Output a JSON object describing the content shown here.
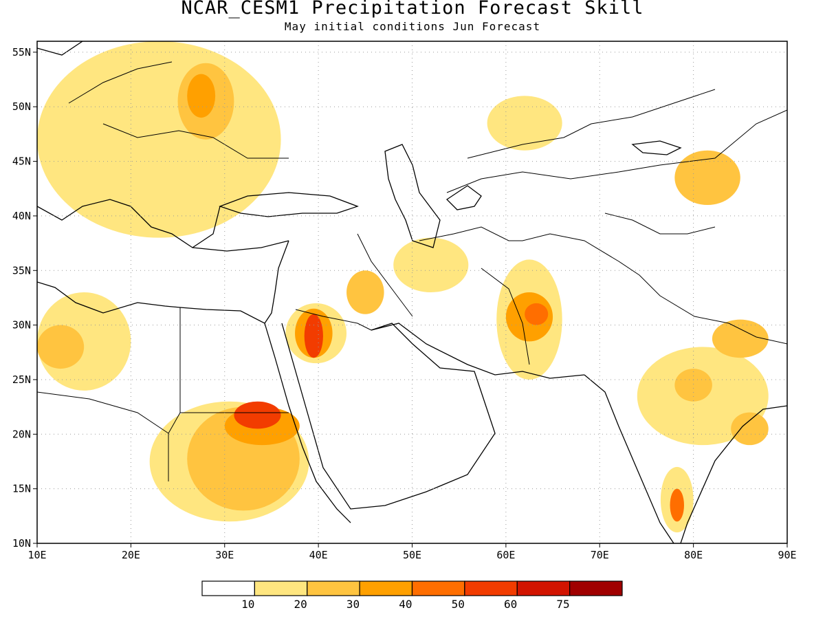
{
  "header": {
    "title": "NCAR_CESM1 Precipitation Forecast Skill",
    "subtitle": "May initial conditions  Jun Forecast"
  },
  "map": {
    "lon_range": [
      10,
      90
    ],
    "lat_range": [
      10,
      56
    ],
    "gridlines": "dotted",
    "x_ticks": [
      "10E",
      "20E",
      "30E",
      "40E",
      "50E",
      "60E",
      "70E",
      "80E",
      "90E"
    ],
    "y_ticks": [
      "10N",
      "15N",
      "20N",
      "25N",
      "30N",
      "35N",
      "40N",
      "45N",
      "50N",
      "55N"
    ]
  },
  "colorbar": {
    "colors": [
      "#ffffff",
      "#ffe680",
      "#ffc440",
      "#ffa000",
      "#ff6e00",
      "#f23c00",
      "#d21400",
      "#a00000"
    ],
    "labels": [
      "10",
      "20",
      "30",
      "40",
      "50",
      "60",
      "75"
    ]
  },
  "skill_regions": [
    {
      "name": "sudan-egypt",
      "level": 1,
      "lon": [
        22,
        39
      ],
      "lat": [
        12,
        23
      ]
    },
    {
      "name": "sudan-egypt",
      "level": 2,
      "lon": [
        26,
        38
      ],
      "lat": [
        13,
        22.5
      ]
    },
    {
      "name": "sudan-egypt",
      "level": 3,
      "lon": [
        30,
        38
      ],
      "lat": [
        19,
        22.5
      ]
    },
    {
      "name": "sudan-egypt",
      "level": 5,
      "lon": [
        31,
        36
      ],
      "lat": [
        20.5,
        23
      ]
    },
    {
      "name": "north-saudi",
      "level": 1,
      "lon": [
        36.5,
        43
      ],
      "lat": [
        26.5,
        32
      ]
    },
    {
      "name": "north-saudi",
      "level": 3,
      "lon": [
        37.5,
        41.5
      ],
      "lat": [
        27,
        31.5
      ]
    },
    {
      "name": "north-saudi",
      "level": 5,
      "lon": [
        38.5,
        40.5
      ],
      "lat": [
        27,
        31
      ]
    },
    {
      "name": "libya",
      "level": 1,
      "lon": [
        10,
        20
      ],
      "lat": [
        24,
        33
      ]
    },
    {
      "name": "libya",
      "level": 2,
      "lon": [
        10,
        15
      ],
      "lat": [
        26,
        30
      ]
    },
    {
      "name": "afghanistan-pakistan",
      "level": 1,
      "lon": [
        59,
        66
      ],
      "lat": [
        25,
        36
      ]
    },
    {
      "name": "afghanistan-pakistan",
      "level": 3,
      "lon": [
        60,
        65
      ],
      "lat": [
        28.5,
        33
      ]
    },
    {
      "name": "afghanistan-pakistan",
      "level": 4,
      "lon": [
        62,
        64.5
      ],
      "lat": [
        30,
        32
      ]
    },
    {
      "name": "south-india",
      "level": 1,
      "lon": [
        76.5,
        80
      ],
      "lat": [
        11,
        17
      ]
    },
    {
      "name": "south-india",
      "level": 4,
      "lon": [
        77.5,
        79
      ],
      "lat": [
        12,
        15
      ]
    },
    {
      "name": "central-india",
      "level": 1,
      "lon": [
        74,
        88
      ],
      "lat": [
        19,
        28
      ]
    },
    {
      "name": "central-india",
      "level": 2,
      "lon": [
        78,
        82
      ],
      "lat": [
        23,
        26
      ]
    },
    {
      "name": "eastern-europe",
      "level": 1,
      "lon": [
        10,
        36
      ],
      "lat": [
        38,
        56
      ]
    },
    {
      "name": "eastern-europe",
      "level": 2,
      "lon": [
        25,
        31
      ],
      "lat": [
        47,
        54
      ]
    },
    {
      "name": "eastern-europe",
      "level": 3,
      "lon": [
        26,
        29
      ],
      "lat": [
        49,
        53
      ]
    },
    {
      "name": "xinjiang",
      "level": 2,
      "lon": [
        78,
        85
      ],
      "lat": [
        41,
        46
      ]
    },
    {
      "name": "kazakhstan",
      "level": 1,
      "lon": [
        58,
        66
      ],
      "lat": [
        46,
        51
      ]
    },
    {
      "name": "iran",
      "level": 1,
      "lon": [
        48,
        56
      ],
      "lat": [
        33,
        38
      ]
    },
    {
      "name": "iraq",
      "level": 2,
      "lon": [
        43,
        47
      ],
      "lat": [
        31,
        35
      ]
    },
    {
      "name": "nepal",
      "level": 2,
      "lon": [
        82,
        88
      ],
      "lat": [
        27,
        30.5
      ]
    },
    {
      "name": "bay-of-bengal",
      "level": 2,
      "lon": [
        84,
        88
      ],
      "lat": [
        19,
        22
      ]
    }
  ]
}
